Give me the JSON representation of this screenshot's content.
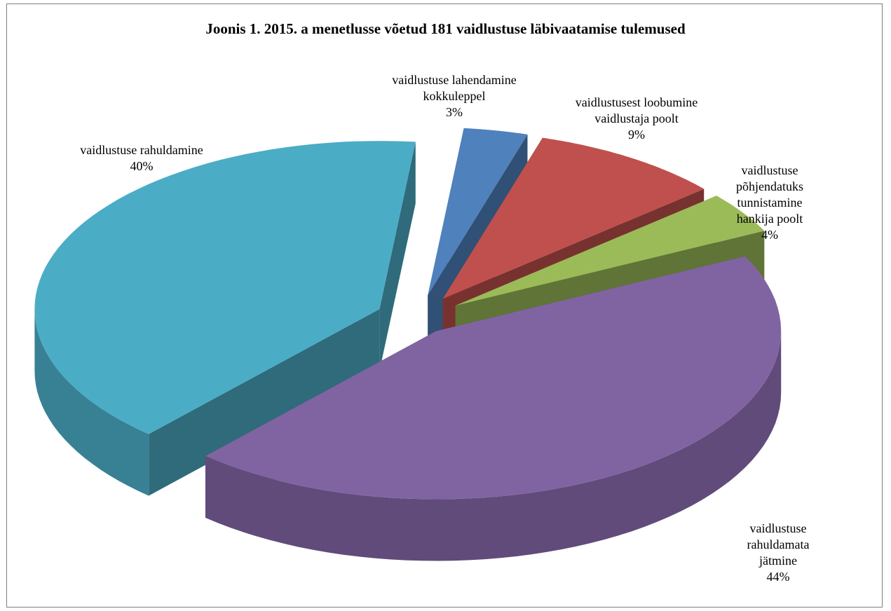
{
  "chart_data": {
    "type": "pie",
    "style": "3d-exploded",
    "title": "Joonis 1. 2015. a menetlusse võetud 181 vaidlustuse läbivaatamise tulemused",
    "slices": [
      {
        "label": "vaidlustuse lahendamine\nkokkuleppel",
        "pct_label": "3%",
        "value": 3,
        "color": "#4F81BD"
      },
      {
        "label": "vaidlustusest loobumine\nvaidlustaja poolt",
        "pct_label": "9%",
        "value": 9,
        "color": "#C0504D"
      },
      {
        "label": "vaidlustuse\npõhjendatuks\ntunnistamine\nhankija poolt",
        "pct_label": "4%",
        "value": 4,
        "color": "#9BBB59"
      },
      {
        "label": "vaidlustuse rahuldamata\njätmine",
        "pct_label": "44%",
        "value": 44,
        "color": "#8064A2"
      },
      {
        "label": "vaidlustuse rahuldamine",
        "pct_label": "40%",
        "value": 40,
        "color": "#4BACC6"
      }
    ],
    "legend": "none"
  }
}
